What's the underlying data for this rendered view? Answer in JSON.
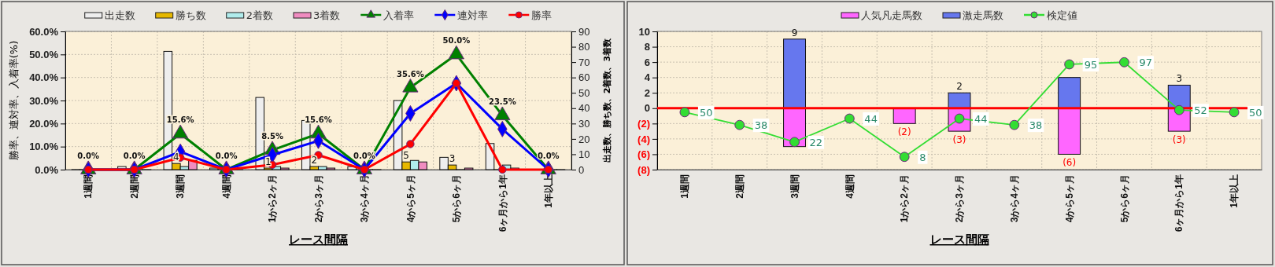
{
  "chart_data": [
    {
      "type": "bar",
      "xlabel": "レース間隔",
      "ylabel": "勝率、連対率、入着率(%)",
      "y2label": "出走数、勝ち数、2着数、3着数",
      "categories": [
        "1週間",
        "2週間",
        "3週間",
        "4週間",
        "1から2ヶ月",
        "2から3ヶ月",
        "3から4ヶ月",
        "4から5ヶ月",
        "5から6ヶ月",
        "6ヶ月から1年",
        "1年以上"
      ],
      "series": [
        {
          "name": "出走数",
          "color": "#eeeeee",
          "axis": "y2",
          "values": [
            0,
            2,
            77,
            1,
            47,
            32,
            2,
            45,
            8,
            17,
            0
          ]
        },
        {
          "name": "勝ち数",
          "color": "#e6b800",
          "axis": "y2",
          "values": [
            0,
            0,
            4,
            0,
            1,
            2,
            0,
            5,
            3,
            0,
            0
          ],
          "value_labels": [
            null,
            null,
            "4",
            null,
            "1",
            "2",
            null,
            "5",
            "3",
            null,
            null
          ]
        },
        {
          "name": "2着数",
          "color": "#b0ecec",
          "axis": "y2",
          "values": [
            0,
            0,
            2,
            0,
            2,
            2,
            0,
            6,
            0,
            3,
            0
          ]
        },
        {
          "name": "3着数",
          "color": "#f08cc0",
          "axis": "y2",
          "values": [
            0,
            0,
            6,
            0,
            1,
            1,
            0,
            5,
            1,
            1,
            0
          ]
        },
        {
          "name": "入着率",
          "type": "line",
          "color": "#008000",
          "axis": "y",
          "marker": "triangle",
          "values": [
            0,
            0,
            15.6,
            0,
            8.5,
            15.6,
            0,
            35.6,
            50.0,
            23.5,
            0
          ],
          "value_labels": [
            "0.0%",
            "0.0%",
            "15.6%",
            "0.0%",
            "8.5%",
            "15.6%",
            "0.0%",
            "35.6%",
            "50.0%",
            "23.5%",
            "0.0%"
          ]
        },
        {
          "name": "連対率",
          "type": "line",
          "color": "#0000ff",
          "axis": "y",
          "marker": "diamond",
          "values": [
            0,
            0,
            7.8,
            0,
            6.4,
            12.5,
            0,
            24.4,
            37.5,
            17.6,
            0
          ]
        },
        {
          "name": "勝率",
          "type": "line",
          "color": "#ff0000",
          "axis": "y",
          "marker": "circle",
          "values": [
            0,
            0,
            5.2,
            0,
            2.1,
            6.3,
            0,
            11.1,
            37.5,
            0,
            0
          ]
        }
      ],
      "ylim": [
        0,
        60
      ],
      "yticks": [
        {
          "value": 0,
          "label": "0.0%"
        },
        {
          "value": 10,
          "label": "10.0%"
        },
        {
          "value": 20,
          "label": "20.0%"
        },
        {
          "value": 30,
          "label": "30.0%"
        },
        {
          "value": 40,
          "label": "40.0%"
        },
        {
          "value": 50,
          "label": "50.0%"
        },
        {
          "value": 60,
          "label": "60.0%"
        }
      ],
      "y2lim": [
        0,
        90
      ],
      "y2ticks": [
        0,
        10,
        20,
        30,
        40,
        50,
        60,
        70,
        80,
        90
      ],
      "grid": true,
      "legend": "top"
    },
    {
      "type": "bar",
      "stacked": true,
      "xlabel": "レース間隔",
      "categories": [
        "1週間",
        "2週間",
        "3週間",
        "4週間",
        "1から2ヶ月",
        "2から3ヶ月",
        "3から4ヶ月",
        "4から5ヶ月",
        "5から6ヶ月",
        "6ヶ月から1年",
        "1年以上"
      ],
      "series": [
        {
          "name": "人気凡走馬数",
          "color": "#ff66ff",
          "values": [
            0,
            0,
            -5,
            0,
            -2,
            -3,
            0,
            -6,
            0,
            -3,
            0
          ],
          "value_labels": [
            null,
            null,
            null,
            null,
            "(2)",
            "(3)",
            null,
            "(6)",
            null,
            "(3)",
            null
          ]
        },
        {
          "name": "激走馬数",
          "color": "#6677ee",
          "values": [
            0,
            0,
            9,
            0,
            0,
            2,
            0,
            4,
            0,
            3,
            0
          ],
          "value_labels": [
            null,
            null,
            "9",
            null,
            null,
            "2",
            null,
            null,
            null,
            "3",
            null
          ]
        },
        {
          "name": "検定値",
          "type": "line",
          "color": "#33dd33",
          "axis": "y2",
          "marker": "circle",
          "values": [
            50,
            38,
            22,
            44,
            8,
            44,
            38,
            95,
            97,
            52,
            50
          ],
          "value_labels": [
            "50",
            "38",
            "22",
            "44",
            "8",
            "44",
            "38",
            "95",
            "97",
            "52",
            "50"
          ]
        }
      ],
      "ylim": [
        -8,
        10
      ],
      "yticks": [
        {
          "value": -8,
          "label": "(8)"
        },
        {
          "value": -6,
          "label": "(6)"
        },
        {
          "value": -4,
          "label": "(4)"
        },
        {
          "value": -2,
          "label": "(2)"
        },
        0,
        2,
        4,
        6,
        8,
        10
      ],
      "y2lim": [
        -4,
        126
      ],
      "ref_lines": [
        {
          "axis": "y",
          "value": 0,
          "color": "#ff0000"
        }
      ],
      "grid": true,
      "legend": "top"
    }
  ]
}
